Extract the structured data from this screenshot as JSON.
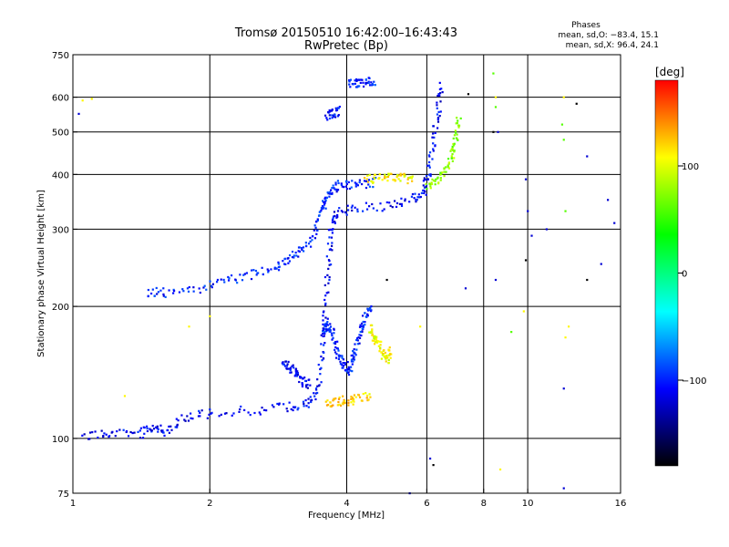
{
  "chart_data": {
    "type": "scatter",
    "title": "Tromsø 20150510 16:42:00–16:43:43",
    "subtitle": "RwPretec (Bp)",
    "xlabel": "Frequency [MHz]",
    "ylabel": "Stationary phase Virtual Height [km]",
    "x_scale": "log",
    "y_scale": "log",
    "xlim": [
      1,
      16
    ],
    "ylim": [
      75,
      750
    ],
    "x_ticks": [
      {
        "v": 1,
        "label": "1"
      },
      {
        "v": 2,
        "label": "2"
      },
      {
        "v": 4,
        "label": "4"
      },
      {
        "v": 6,
        "label": "6"
      },
      {
        "v": 8,
        "label": "8"
      },
      {
        "v": 10,
        "label": "10"
      },
      {
        "v": 16,
        "label": "16"
      }
    ],
    "y_ticks": [
      {
        "v": 75,
        "label": "75"
      },
      {
        "v": 100,
        "label": "100"
      },
      {
        "v": 200,
        "label": "200"
      },
      {
        "v": 300,
        "label": "300"
      },
      {
        "v": 400,
        "label": "400"
      },
      {
        "v": 500,
        "label": "500"
      },
      {
        "v": 600,
        "label": "600"
      },
      {
        "v": 750,
        "label": "750"
      }
    ],
    "x_grid": [
      2,
      4,
      6,
      8,
      10
    ],
    "y_grid": [
      100,
      200,
      300,
      400,
      500,
      600
    ],
    "grid": true,
    "legend": {
      "title": "Phases",
      "line1": "mean, sd,O: −83.4, 15.1",
      "line2": "mean, sd,X: 96.4, 24.1",
      "placement": "top-right"
    },
    "colorbar": {
      "label": "[deg]",
      "min": -180,
      "max": 180,
      "ticks": [
        {
          "v": 100,
          "label": "100"
        },
        {
          "v": 0,
          "label": "0"
        },
        {
          "v": -100,
          "label": "−100"
        }
      ],
      "stops": [
        "#ff0000",
        "#ffff00",
        "#00ff00",
        "#00ffff",
        "#0000ff",
        "#000000"
      ]
    },
    "traces": [
      {
        "name": "",
        "phase": -110,
        "points": [
          [
            1.05,
            100
          ],
          [
            1.2,
            103
          ],
          [
            1.4,
            102
          ],
          [
            1.5,
            107
          ],
          [
            1.6,
            103
          ],
          [
            1.75,
            112
          ],
          [
            2.0,
            114
          ],
          [
            2.5,
            116
          ],
          [
            3.0,
            118
          ],
          [
            3.3,
            120
          ],
          [
            3.45,
            130
          ],
          [
            3.55,
            160
          ],
          [
            3.6,
            200
          ],
          [
            3.65,
            250
          ],
          [
            3.7,
            300
          ],
          [
            3.8,
            330
          ],
          [
            4.2,
            335
          ],
          [
            5.0,
            340
          ],
          [
            5.6,
            350
          ],
          [
            5.9,
            365
          ],
          [
            6.05,
            400
          ],
          [
            6.2,
            470
          ],
          [
            6.35,
            560
          ],
          [
            6.45,
            640
          ]
        ]
      },
      {
        "name": "",
        "phase": -100,
        "points": [
          [
            1.45,
            215
          ],
          [
            1.6,
            215
          ],
          [
            1.9,
            220
          ],
          [
            2.2,
            228
          ],
          [
            2.5,
            238
          ],
          [
            2.8,
            248
          ],
          [
            3.0,
            256
          ],
          [
            3.2,
            270
          ],
          [
            3.4,
            290
          ],
          [
            3.5,
            330
          ],
          [
            3.6,
            350
          ],
          [
            3.7,
            370
          ],
          [
            3.9,
            380
          ],
          [
            4.2,
            380
          ],
          [
            4.6,
            385
          ]
        ]
      },
      {
        "name": "",
        "phase": -110,
        "points": [
          [
            2.9,
            150
          ],
          [
            3.0,
            145
          ],
          [
            3.1,
            140
          ],
          [
            3.2,
            135
          ],
          [
            3.3,
            133
          ]
        ]
      },
      {
        "name": "",
        "phase": -100,
        "points": [
          [
            3.55,
            170
          ],
          [
            3.6,
            185
          ],
          [
            3.7,
            175
          ],
          [
            3.8,
            160
          ],
          [
            3.9,
            150
          ],
          [
            4.0,
            140
          ],
          [
            4.1,
            150
          ],
          [
            4.2,
            160
          ],
          [
            4.3,
            175
          ],
          [
            4.4,
            190
          ],
          [
            4.5,
            200
          ]
        ]
      },
      {
        "name": "",
        "phase": 105,
        "points": [
          [
            4.5,
            180
          ],
          [
            4.6,
            170
          ],
          [
            4.7,
            165
          ],
          [
            4.8,
            155
          ],
          [
            4.9,
            150
          ],
          [
            5.0,
            160
          ]
        ]
      },
      {
        "name": "",
        "phase": 120,
        "points": [
          [
            3.6,
            120
          ],
          [
            3.8,
            121
          ],
          [
            4.0,
            122
          ],
          [
            4.2,
            123
          ],
          [
            4.5,
            125
          ]
        ]
      },
      {
        "name": "",
        "phase": 110,
        "points": [
          [
            4.4,
            390
          ],
          [
            4.7,
            392
          ],
          [
            5.0,
            393
          ],
          [
            5.3,
            392
          ],
          [
            5.6,
            390
          ]
        ]
      },
      {
        "name": "",
        "phase": 75,
        "points": [
          [
            6.0,
            375
          ],
          [
            6.3,
            385
          ],
          [
            6.6,
            410
          ],
          [
            6.8,
            440
          ],
          [
            6.95,
            480
          ],
          [
            7.05,
            540
          ]
        ]
      },
      {
        "name": "",
        "phase": -100,
        "points": [
          [
            4.05,
            650
          ],
          [
            4.2,
            648
          ],
          [
            4.4,
            650
          ],
          [
            4.6,
            652
          ]
        ]
      },
      {
        "name": "",
        "phase": -105,
        "points": [
          [
            3.6,
            545
          ],
          [
            3.75,
            550
          ],
          [
            3.85,
            560
          ]
        ]
      }
    ],
    "sparse": [
      {
        "name": "",
        "phase": -120,
        "points": [
          [
            1.03,
            550
          ],
          [
            5.5,
            75
          ],
          [
            6.1,
            90
          ],
          [
            7.3,
            220
          ],
          [
            8.5,
            230
          ],
          [
            8.6,
            500
          ],
          [
            9.9,
            390
          ],
          [
            10.0,
            330
          ],
          [
            10.2,
            290
          ],
          [
            11.0,
            300
          ],
          [
            12.0,
            130
          ],
          [
            12.0,
            77
          ],
          [
            13.5,
            440
          ],
          [
            14.5,
            250
          ],
          [
            15.0,
            350
          ],
          [
            15.5,
            310
          ]
        ]
      },
      {
        "name": "",
        "phase": 110,
        "points": [
          [
            1.05,
            590
          ],
          [
            1.1,
            595
          ],
          [
            1.3,
            125
          ],
          [
            1.8,
            180
          ],
          [
            2.0,
            190
          ],
          [
            5.8,
            180
          ],
          [
            8.5,
            600
          ],
          [
            8.7,
            85
          ],
          [
            9.8,
            195
          ],
          [
            12.0,
            600
          ],
          [
            12.1,
            170
          ],
          [
            12.3,
            180
          ]
        ]
      },
      {
        "name": "",
        "phase": -180,
        "points": [
          [
            4.9,
            230
          ],
          [
            6.2,
            87
          ],
          [
            7.4,
            610
          ],
          [
            8.4,
            500
          ],
          [
            9.9,
            255
          ],
          [
            12.8,
            580
          ],
          [
            13.5,
            230
          ]
        ]
      },
      {
        "name": "",
        "phase": 60,
        "points": [
          [
            8.4,
            680
          ],
          [
            8.5,
            570
          ],
          [
            9.2,
            175
          ],
          [
            11.9,
            520
          ],
          [
            12.0,
            480
          ],
          [
            12.1,
            330
          ]
        ]
      }
    ]
  }
}
